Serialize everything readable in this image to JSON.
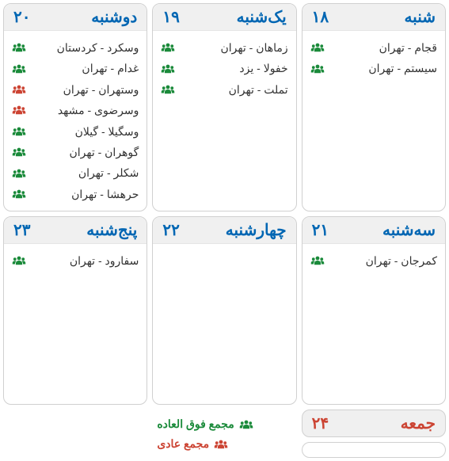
{
  "colors": {
    "blue": "#0066b3",
    "red": "#cc4433",
    "green": "#1a8a3a",
    "headerBg": "#f0f0f0",
    "border": "#d0d0d0",
    "text": "#333333"
  },
  "days": [
    {
      "name": "شنبه",
      "number": "۱۸",
      "events": [
        {
          "label": "قجام - تهران",
          "type": "green"
        },
        {
          "label": "سیستم - تهران",
          "type": "green"
        }
      ]
    },
    {
      "name": "یک‌شنبه",
      "number": "۱۹",
      "events": [
        {
          "label": "زماهان - تهران",
          "type": "green"
        },
        {
          "label": "خفولا - یزد",
          "type": "green"
        },
        {
          "label": "تملت - تهران",
          "type": "green"
        }
      ]
    },
    {
      "name": "دوشنبه",
      "number": "۲۰",
      "events": [
        {
          "label": "وسکرد - کردستان",
          "type": "green"
        },
        {
          "label": "غدام - تهران",
          "type": "green"
        },
        {
          "label": "وستهران - تهران",
          "type": "red"
        },
        {
          "label": "وسرضوی - مشهد",
          "type": "red"
        },
        {
          "label": "وسگیلا - گیلان",
          "type": "green"
        },
        {
          "label": "گوهران - تهران",
          "type": "green"
        },
        {
          "label": "شکلر - تهران",
          "type": "green"
        },
        {
          "label": "حرهشا - تهران",
          "type": "green"
        }
      ]
    },
    {
      "name": "سه‌شنبه",
      "number": "۲۱",
      "events": [
        {
          "label": "کمرجان - تهران",
          "type": "green"
        }
      ]
    },
    {
      "name": "چهارشنبه",
      "number": "۲۲",
      "events": []
    },
    {
      "name": "پنج‌شنبه",
      "number": "۲۳",
      "events": [
        {
          "label": "سفارود - تهران",
          "type": "green"
        }
      ]
    }
  ],
  "friday": {
    "name": "جمعه",
    "number": "۲۴"
  },
  "legend": {
    "special": "مجمع فوق العاده",
    "ordinary": "مجمع عادی"
  }
}
